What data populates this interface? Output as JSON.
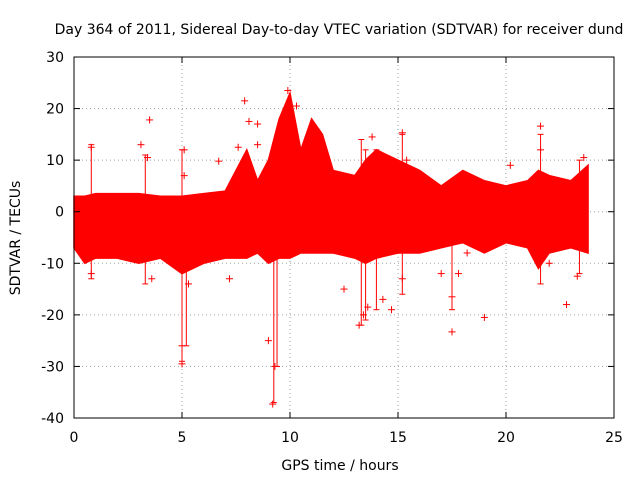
{
  "chart_data": {
    "type": "scatter",
    "title": "Day 364 of 2011, Sidereal Day-to-day VTEC variation (SDTVAR) for receiver dund",
    "xlabel": "GPS time / hours",
    "ylabel": "SDTVAR / TECUs",
    "xlim": [
      0,
      25
    ],
    "ylim": [
      -40,
      30
    ],
    "xticks": [
      0,
      5,
      10,
      15,
      20,
      25
    ],
    "yticks": [
      -40,
      -30,
      -20,
      -10,
      0,
      10,
      20,
      30
    ],
    "grid": true,
    "marker": "+",
    "series": [
      {
        "name": "SDTVAR",
        "color": "#ff0000",
        "band": {
          "x": [
            0,
            0.5,
            1,
            2,
            3,
            4,
            5,
            6,
            7,
            7.5,
            8,
            8.5,
            9,
            9.5,
            10,
            10.5,
            11,
            11.5,
            12,
            13,
            13.5,
            14,
            15,
            16,
            17,
            18,
            19,
            20,
            21,
            21.5,
            22,
            23,
            23.8
          ],
          "upper": [
            3,
            3,
            3.5,
            3.5,
            3.5,
            3,
            3,
            3.5,
            4,
            8,
            12,
            6,
            10,
            18,
            23,
            12,
            18,
            15,
            8,
            7,
            10,
            12,
            10,
            8,
            5,
            8,
            6,
            5,
            6,
            8,
            7,
            6,
            9
          ],
          "lower": [
            -7,
            -10,
            -9,
            -9,
            -10,
            -9,
            -12,
            -10,
            -9,
            -9,
            -9,
            -8,
            -10,
            -9,
            -9,
            -8,
            -8,
            -8,
            -8,
            -9,
            -10,
            -9,
            -8,
            -8,
            -7,
            -6,
            -8,
            -6,
            -7,
            -11,
            -8,
            -7,
            -8
          ]
        },
        "outliers": [
          {
            "x": 0.8,
            "y": 12.5
          },
          {
            "x": 0.8,
            "y": -12
          },
          {
            "x": 3.1,
            "y": 13
          },
          {
            "x": 3.5,
            "y": 17.8
          },
          {
            "x": 3.4,
            "y": 10.5
          },
          {
            "x": 3.6,
            "y": -13
          },
          {
            "x": 4.3,
            "y": -8.5
          },
          {
            "x": 5.0,
            "y": -29.5
          },
          {
            "x": 5.0,
            "y": -26
          },
          {
            "x": 5.1,
            "y": 12
          },
          {
            "x": 5.1,
            "y": 7
          },
          {
            "x": 5.3,
            "y": -14
          },
          {
            "x": 6.7,
            "y": 9.8
          },
          {
            "x": 7.2,
            "y": -13
          },
          {
            "x": 7.6,
            "y": 12.5
          },
          {
            "x": 7.9,
            "y": 21.5
          },
          {
            "x": 8.1,
            "y": 17.5
          },
          {
            "x": 8.5,
            "y": 17
          },
          {
            "x": 8.5,
            "y": 13
          },
          {
            "x": 9.2,
            "y": -37.3
          },
          {
            "x": 9.3,
            "y": -30
          },
          {
            "x": 9.0,
            "y": -25
          },
          {
            "x": 9.9,
            "y": 23.5
          },
          {
            "x": 10.3,
            "y": 20.5
          },
          {
            "x": 12.5,
            "y": -15
          },
          {
            "x": 13.2,
            "y": -22
          },
          {
            "x": 13.4,
            "y": -20
          },
          {
            "x": 13.6,
            "y": -18.5
          },
          {
            "x": 13.8,
            "y": 14.5
          },
          {
            "x": 14.3,
            "y": -17
          },
          {
            "x": 14.7,
            "y": -19
          },
          {
            "x": 15.2,
            "y": 15.3
          },
          {
            "x": 15.4,
            "y": 10
          },
          {
            "x": 15.2,
            "y": -13
          },
          {
            "x": 17.0,
            "y": -12
          },
          {
            "x": 17.5,
            "y": -16.5
          },
          {
            "x": 17.5,
            "y": -23.3
          },
          {
            "x": 17.8,
            "y": -12
          },
          {
            "x": 18.2,
            "y": -8
          },
          {
            "x": 19.0,
            "y": -20.5
          },
          {
            "x": 20.2,
            "y": 9
          },
          {
            "x": 21.6,
            "y": 16.6
          },
          {
            "x": 21.6,
            "y": 12
          },
          {
            "x": 22.8,
            "y": -18
          },
          {
            "x": 23.3,
            "y": -12.5
          },
          {
            "x": 23.6,
            "y": 10.5
          },
          {
            "x": 22.0,
            "y": -10
          }
        ],
        "spikes": [
          {
            "x": 0.8,
            "ymin": -13,
            "ymax": 13
          },
          {
            "x": 3.3,
            "ymin": -14,
            "ymax": 11
          },
          {
            "x": 5.0,
            "ymin": -29,
            "ymax": 12
          },
          {
            "x": 5.2,
            "ymin": -26,
            "ymax": 3
          },
          {
            "x": 9.25,
            "ymin": -37,
            "ymax": 5
          },
          {
            "x": 9.4,
            "ymin": -30,
            "ymax": 5
          },
          {
            "x": 13.3,
            "ymin": -22,
            "ymax": 14
          },
          {
            "x": 13.5,
            "ymin": -21,
            "ymax": 12
          },
          {
            "x": 14.0,
            "ymin": -19,
            "ymax": 12
          },
          {
            "x": 15.2,
            "ymin": -16,
            "ymax": 15
          },
          {
            "x": 17.5,
            "ymin": -19,
            "ymax": 5
          },
          {
            "x": 21.6,
            "ymin": -14,
            "ymax": 15
          },
          {
            "x": 23.4,
            "ymin": -12,
            "ymax": 10
          }
        ]
      }
    ]
  }
}
